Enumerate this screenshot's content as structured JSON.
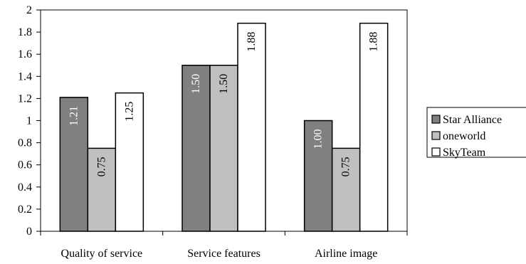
{
  "chart_data": {
    "type": "bar",
    "categories": [
      "Quality of service",
      "Service features",
      "Airline image"
    ],
    "series": [
      {
        "name": "Star Alliance",
        "values": [
          1.21,
          1.5,
          1.0
        ],
        "labels": [
          "1.21",
          "1.50",
          "1.00"
        ],
        "color": "#808080"
      },
      {
        "name": "oneworld",
        "values": [
          0.75,
          1.5,
          0.75
        ],
        "labels": [
          "0.75",
          "1.50",
          "0.75"
        ],
        "color": "#c0c0c0"
      },
      {
        "name": "SkyTeam",
        "values": [
          1.25,
          1.88,
          1.88
        ],
        "labels": [
          "1.25",
          "1.88",
          "1.88"
        ],
        "color": "#ffffff"
      }
    ],
    "yticks": [
      "0",
      "0.2",
      "0.4",
      "0.6",
      "0.8",
      "1",
      "1.2",
      "1.4",
      "1.6",
      "1.8",
      "2"
    ],
    "ylim": [
      0,
      2
    ],
    "grid": false,
    "legend_position": "right",
    "title": "",
    "xlabel": "",
    "ylabel": ""
  }
}
